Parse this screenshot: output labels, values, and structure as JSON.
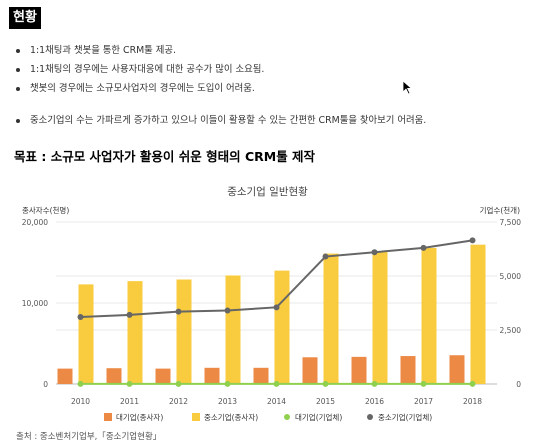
{
  "header": {
    "tag": "현황"
  },
  "bullets": [
    "1:1채팅과 챗봇을 통한 CRM툴 제공.",
    "1:1채팅의 경우에는 사용자대응에 대한 공수가 많이 소요됨.",
    "챗봇의 경우에는 소규모사업자의 경우에는 도입이 어려움.",
    "중소기업의 수는 가파르게 증가하고 있으나 이들이 활용할 수 있는 간편한 CRM툴을 찾아보기 어려움."
  ],
  "goal": "목표 : 소규모 사업자가 활용이 쉬운 형태의 CRM툴 제작",
  "source": "출처 : 중소벤처기업부,「중소기업현황」",
  "icons": [
    "mouse-pointer-icon"
  ],
  "chart_data": {
    "type": "bar",
    "title": "중소기업 일반현황",
    "ylabel_left": "종사자수(천명)",
    "ylabel_right": "기업수(천개)",
    "left_ticks": [
      "0",
      "10,000",
      "20,000"
    ],
    "right_ticks": [
      "0",
      "2,500",
      "5,000",
      "7,500"
    ],
    "ylim_left": [
      0,
      20000
    ],
    "ylim_right": [
      0,
      7500
    ],
    "categories": [
      "2010",
      "2011",
      "2012",
      "2013",
      "2014",
      "2015",
      "2016",
      "2017",
      "2018"
    ],
    "series": [
      {
        "name": "대기업(종사자)",
        "type": "bar",
        "axis": "left",
        "color": "#ec8a45",
        "values": [
          1900,
          1950,
          1900,
          2000,
          2000,
          3300,
          3350,
          3450,
          3550
        ]
      },
      {
        "name": "중소기업(종사자)",
        "type": "bar",
        "axis": "left",
        "color": "#f9cc3f",
        "values": [
          12300,
          12700,
          12900,
          13400,
          14000,
          16100,
          16300,
          16800,
          17200
        ]
      },
      {
        "name": "대기업(기업체)",
        "type": "line",
        "axis": "right",
        "color": "#8fd14f",
        "values": [
          3,
          3,
          3,
          3,
          3,
          3,
          3,
          3,
          3
        ]
      },
      {
        "name": "중소기업(기업체)",
        "type": "line",
        "axis": "right",
        "color": "#666666",
        "values": [
          3100,
          3200,
          3350,
          3400,
          3550,
          5900,
          6100,
          6300,
          6650
        ]
      }
    ],
    "legend": "bottom",
    "grid": true
  }
}
